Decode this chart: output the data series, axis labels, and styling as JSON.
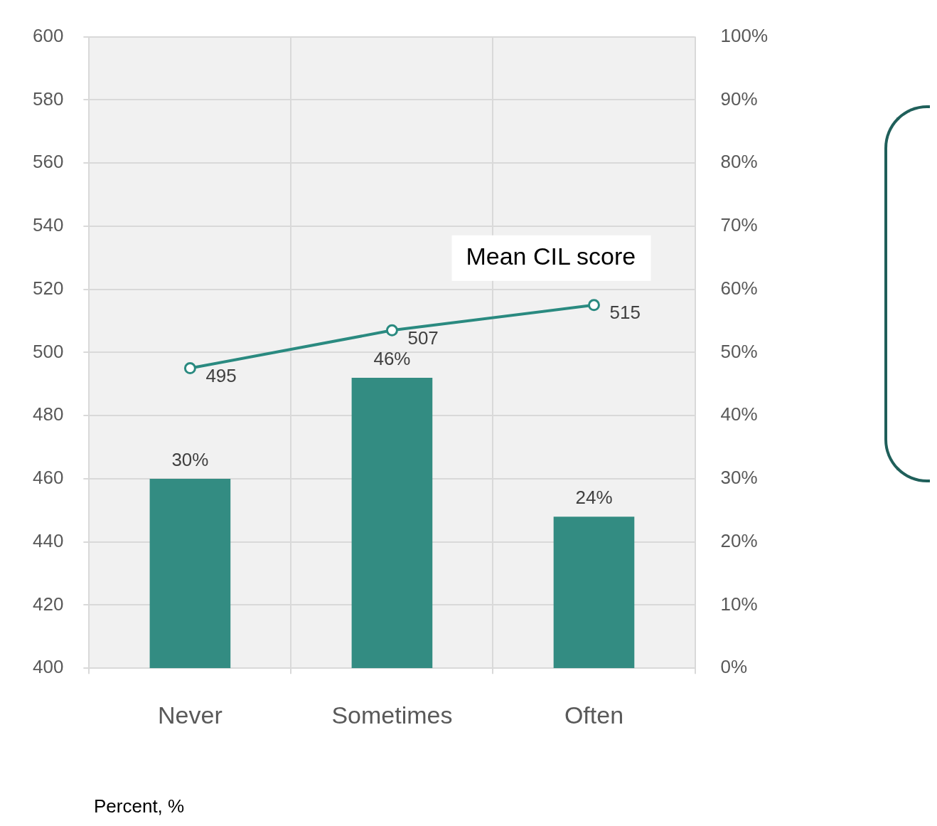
{
  "chart_data": {
    "type": "bar",
    "categories": [
      "Never",
      "Sometimes",
      "Often"
    ],
    "series": [
      {
        "axis": "y2",
        "color": "#338c82",
        "values": [
          30,
          46,
          24
        ],
        "value_labels": [
          "30%",
          "46%",
          "24%"
        ]
      },
      {
        "type": "line",
        "name": "Mean CIL score",
        "axis": "y",
        "color": "#2a8a80",
        "values": [
          495,
          507,
          515
        ],
        "value_labels": [
          "495",
          "507",
          "515"
        ]
      }
    ],
    "ylim": [
      400,
      600
    ],
    "yticks": [
      400,
      420,
      440,
      460,
      480,
      500,
      520,
      540,
      560,
      580,
      600
    ],
    "y2lim": [
      0,
      100
    ],
    "y2ticks": [
      {
        "value": 0,
        "label": "0%"
      },
      {
        "value": 10,
        "label": "10%"
      },
      {
        "value": 20,
        "label": "20%"
      },
      {
        "value": 30,
        "label": "30%"
      },
      {
        "value": 40,
        "label": "40%"
      },
      {
        "value": 50,
        "label": "50%"
      },
      {
        "value": 60,
        "label": "60%"
      },
      {
        "value": 70,
        "label": "70%"
      },
      {
        "value": 80,
        "label": "80%"
      },
      {
        "value": 90,
        "label": "90%"
      },
      {
        "value": 100,
        "label": "100%"
      }
    ],
    "grid": true,
    "legend": false,
    "marker": "circle",
    "annotations": [
      "Percent, %"
    ]
  }
}
